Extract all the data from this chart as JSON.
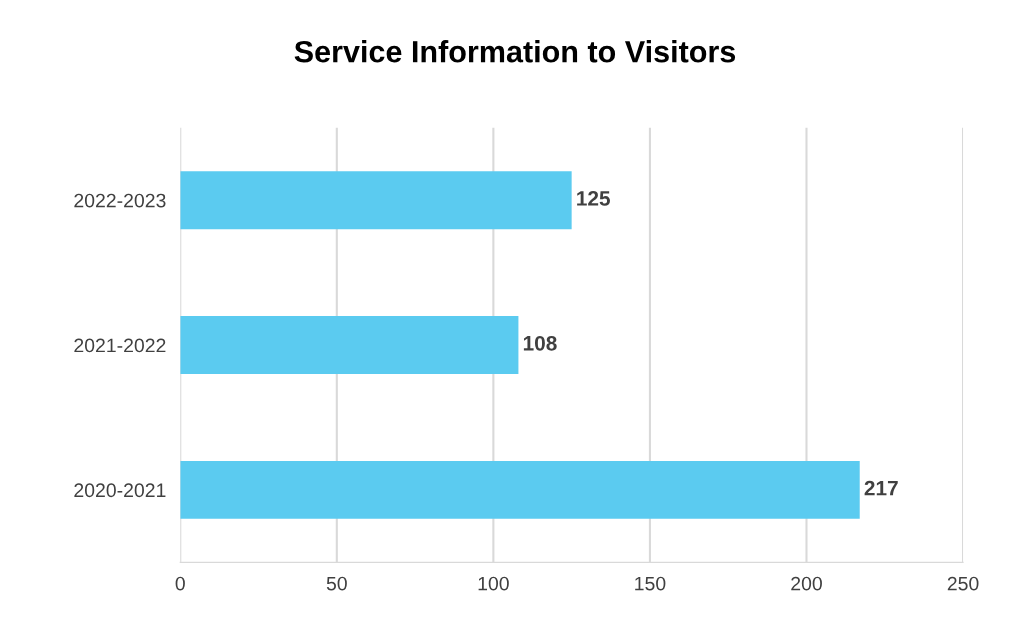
{
  "chart_data": {
    "type": "bar",
    "orientation": "horizontal",
    "title": "Service Information to Visitors",
    "categories": [
      "2022-2023",
      "2021-2022",
      "2020-2021"
    ],
    "values": [
      125,
      108,
      217
    ],
    "color": "#5bcbf0",
    "xlim": [
      0,
      250
    ],
    "xticks": [
      0,
      50,
      100,
      150,
      200,
      250
    ],
    "grid": "x",
    "data_labels": true
  }
}
